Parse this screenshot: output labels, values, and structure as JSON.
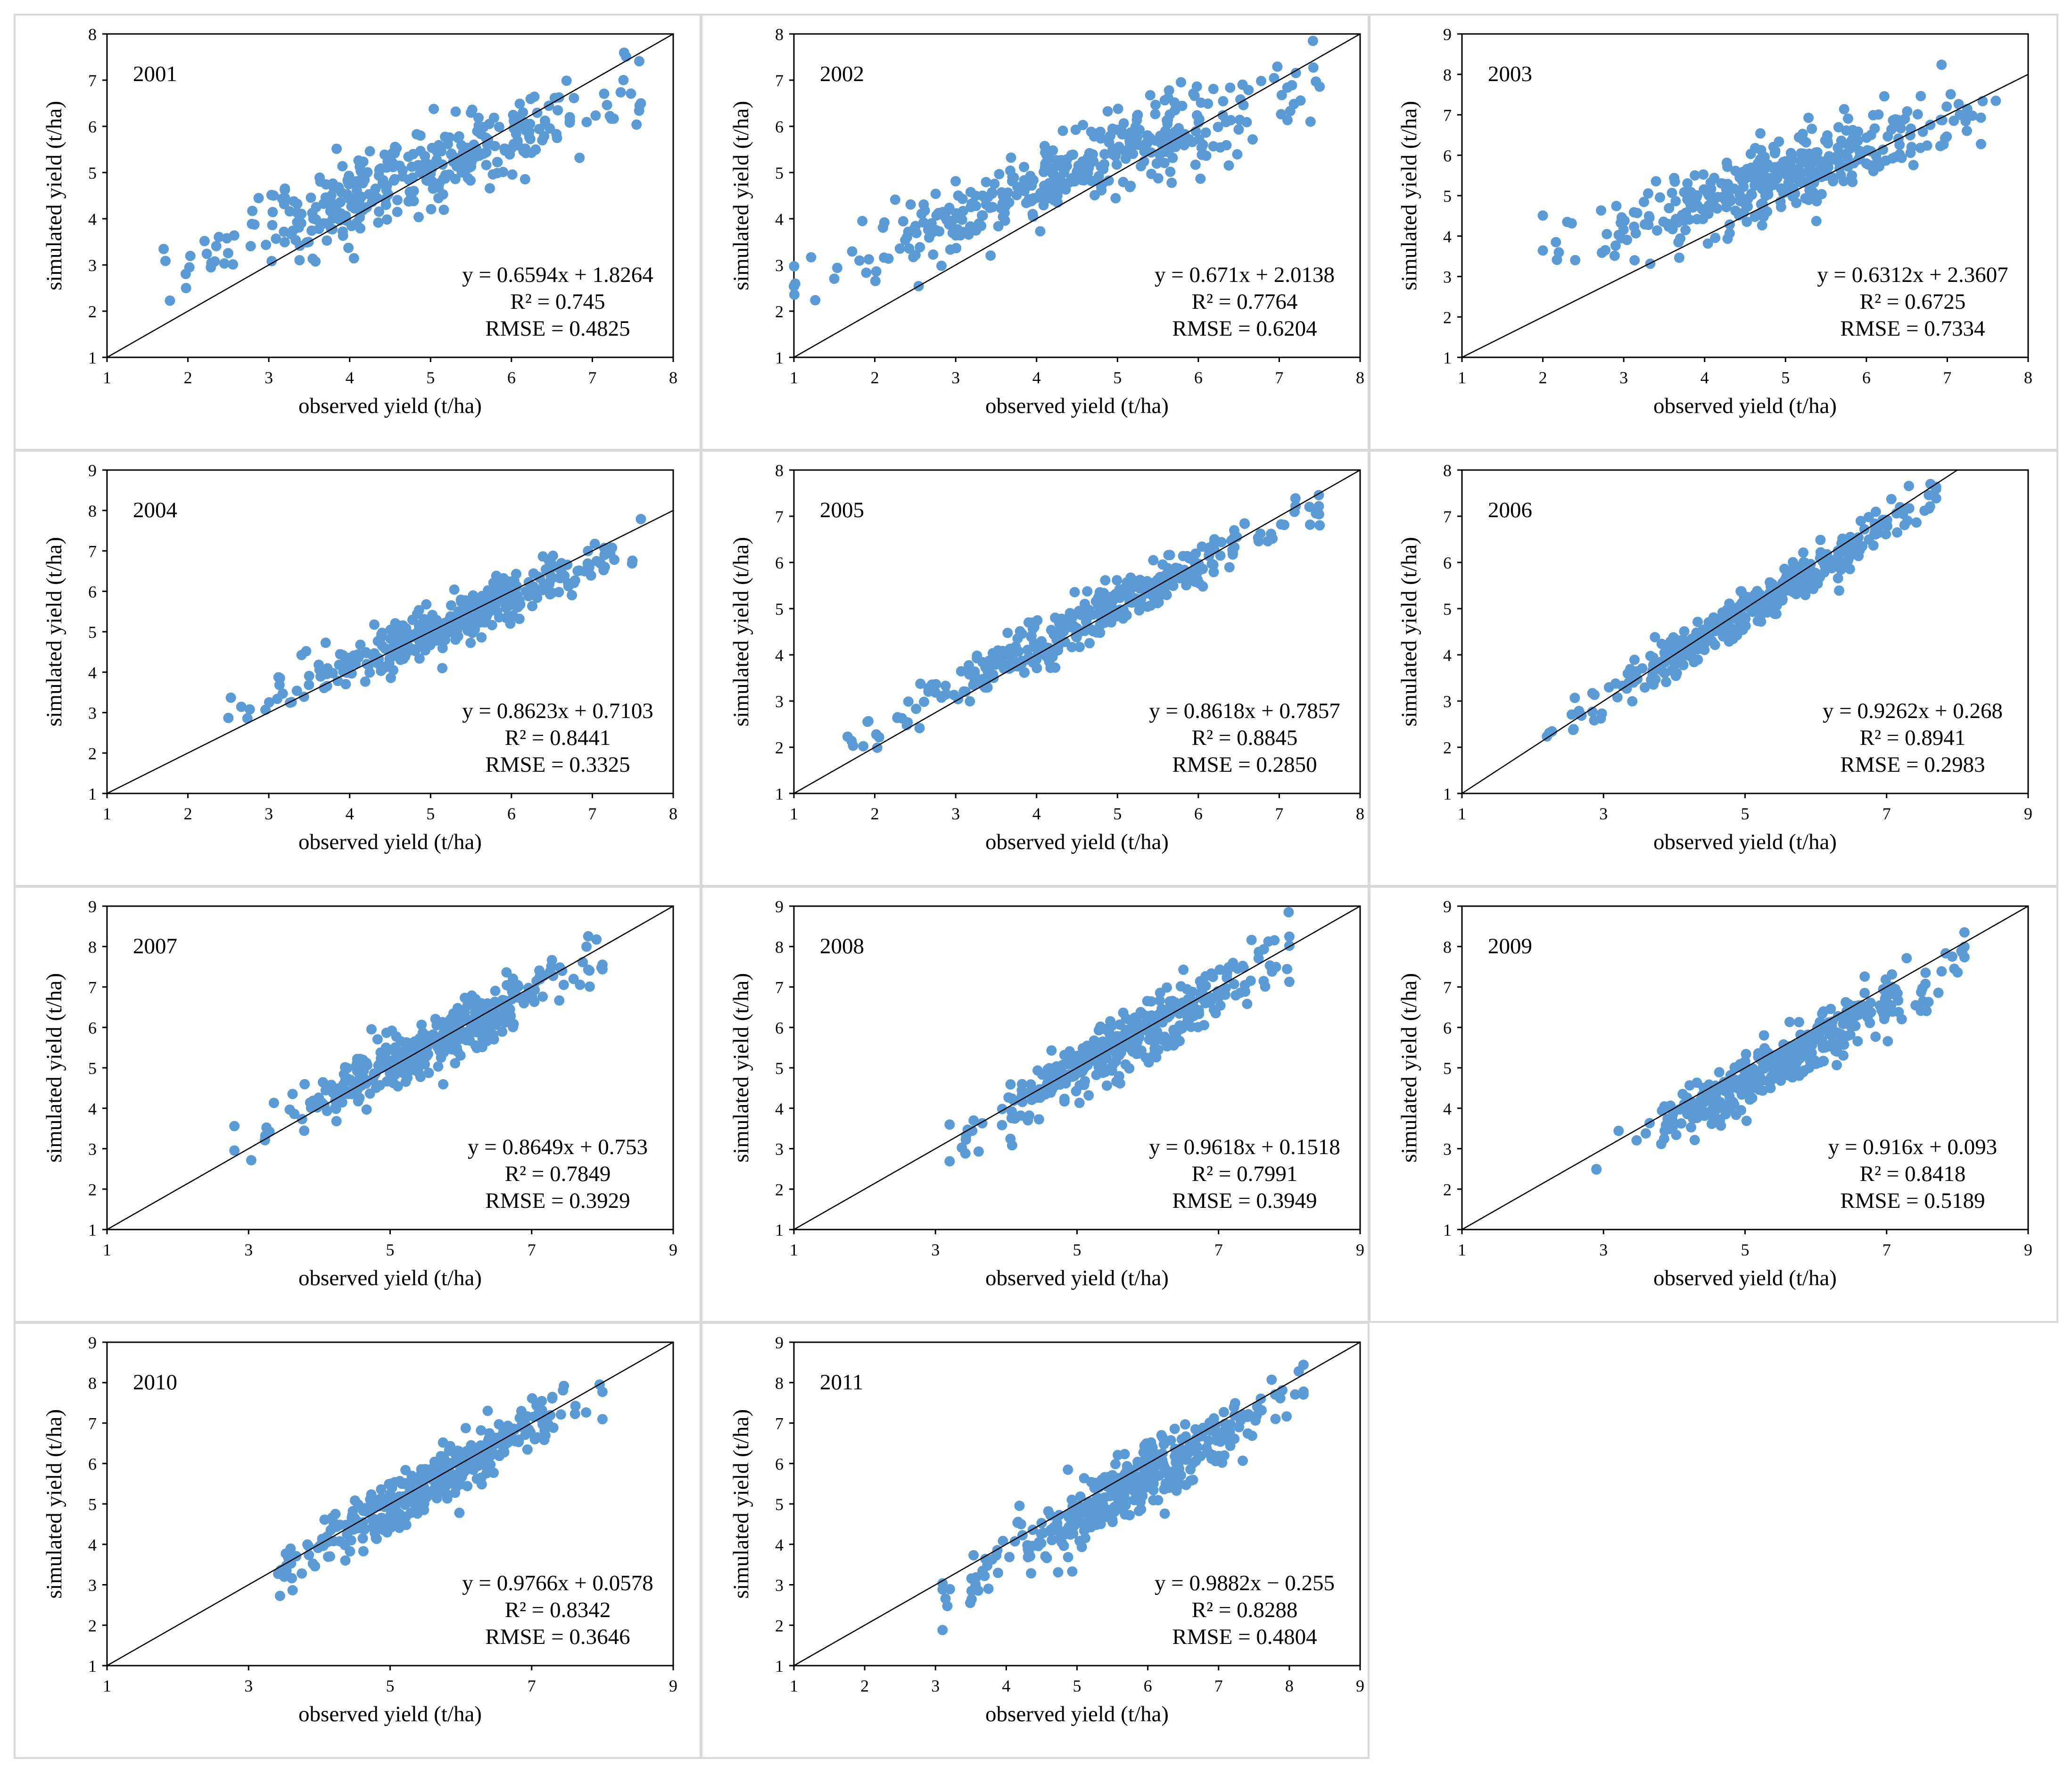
{
  "figure": {
    "note": "Scatter plots of simulated vs observed yield with 1:1 line, 2001-2011"
  },
  "style": {
    "point_color": "#5b9bd5",
    "line_color": "#000000",
    "panel_border": "#d9d9d9",
    "axis_color": "#000000"
  },
  "chart_data": [
    {
      "type": "scatter",
      "title": "2001",
      "xlabel": "observed yield (t/ha)",
      "ylabel": "simulated yield (t/ha)",
      "xlim": [
        1,
        8
      ],
      "ylim": [
        1,
        8
      ],
      "xticks": [
        1,
        2,
        3,
        4,
        5,
        6,
        7,
        8
      ],
      "yticks": [
        1,
        2,
        3,
        4,
        5,
        6,
        7,
        8
      ],
      "equation": "y = 0.6594x + 1.8264",
      "r2": "R² = 0.745",
      "rmse": "RMSE = 0.4825",
      "slope": 0.6594,
      "intercept": 1.8264,
      "x_range": [
        1.7,
        7.6
      ],
      "spread": 0.45,
      "n": 360,
      "seed": 11
    },
    {
      "type": "scatter",
      "title": "2002",
      "xlabel": "observed yield (t/ha)",
      "ylabel": "simulated yield (t/ha)",
      "xlim": [
        1,
        8
      ],
      "ylim": [
        1,
        8
      ],
      "xticks": [
        1,
        2,
        3,
        4,
        5,
        6,
        7,
        8
      ],
      "yticks": [
        1,
        2,
        3,
        4,
        5,
        6,
        7,
        8
      ],
      "equation": "y = 0.671x + 2.0138",
      "r2": "R² = 0.7764",
      "rmse": "RMSE = 0.6204",
      "slope": 0.671,
      "intercept": 2.0138,
      "x_range": [
        1.0,
        7.5
      ],
      "spread": 0.42,
      "n": 380,
      "seed": 22
    },
    {
      "type": "scatter",
      "title": "2003",
      "xlabel": "observed yield (t/ha)",
      "ylabel": "simulated yield (t/ha)",
      "xlim": [
        1,
        8
      ],
      "ylim": [
        1,
        9
      ],
      "xticks": [
        1,
        2,
        3,
        4,
        5,
        6,
        7,
        8
      ],
      "yticks": [
        1,
        2,
        3,
        4,
        5,
        6,
        7,
        8,
        9
      ],
      "equation": "y = 0.6312x + 2.3607",
      "r2": "R² = 0.6725",
      "rmse": "RMSE = 0.7334",
      "slope": 0.6312,
      "intercept": 2.3607,
      "x_range": [
        2.0,
        7.6
      ],
      "spread": 0.45,
      "n": 370,
      "seed": 33
    },
    {
      "type": "scatter",
      "title": "2004",
      "xlabel": "observed yield (t/ha)",
      "ylabel": "simulated yield (t/ha)",
      "xlim": [
        1,
        8
      ],
      "ylim": [
        1,
        9
      ],
      "xticks": [
        1,
        2,
        3,
        4,
        5,
        6,
        7,
        8
      ],
      "yticks": [
        1,
        2,
        3,
        4,
        5,
        6,
        7,
        8,
        9
      ],
      "equation": "y = 0.8623x + 0.7103",
      "r2": "R² = 0.8441",
      "rmse": "RMSE = 0.3325",
      "slope": 0.8623,
      "intercept": 0.7103,
      "x_range": [
        2.5,
        7.6
      ],
      "spread": 0.32,
      "n": 370,
      "seed": 44
    },
    {
      "type": "scatter",
      "title": "2005",
      "xlabel": "observed yield (t/ha)",
      "ylabel": "simulated yield (t/ha)",
      "xlim": [
        1,
        8
      ],
      "ylim": [
        1,
        8
      ],
      "xticks": [
        1,
        2,
        3,
        4,
        5,
        6,
        7,
        8
      ],
      "yticks": [
        1,
        2,
        3,
        4,
        5,
        6,
        7,
        8
      ],
      "equation": "y = 0.8618x + 0.7857",
      "r2": "R² = 0.8845",
      "rmse": "RMSE = 0.2850",
      "slope": 0.8618,
      "intercept": 0.7857,
      "x_range": [
        1.6,
        7.5
      ],
      "spread": 0.25,
      "n": 360,
      "seed": 55
    },
    {
      "type": "scatter",
      "title": "2006",
      "xlabel": "observed yield (t/ha)",
      "ylabel": "simulated yield (t/ha)",
      "xlim": [
        1,
        9
      ],
      "ylim": [
        1,
        8
      ],
      "xticks": [
        1,
        3,
        5,
        7,
        9
      ],
      "yticks": [
        1,
        2,
        3,
        4,
        5,
        6,
        7,
        8
      ],
      "equation": "y = 0.9262x + 0.268",
      "r2": "R² = 0.8941",
      "rmse": "RMSE = 0.2983",
      "slope": 0.9262,
      "intercept": 0.268,
      "x_range": [
        2.2,
        7.7
      ],
      "spread": 0.23,
      "n": 380,
      "seed": 66
    },
    {
      "type": "scatter",
      "title": "2007",
      "xlabel": "observed yield (t/ha)",
      "ylabel": "simulated yield (t/ha)",
      "xlim": [
        1,
        9
      ],
      "ylim": [
        1,
        9
      ],
      "xticks": [
        1,
        3,
        5,
        7,
        9
      ],
      "yticks": [
        1,
        2,
        3,
        4,
        5,
        6,
        7,
        8,
        9
      ],
      "equation": "y = 0.8649x + 0.753",
      "r2": "R² = 0.7849",
      "rmse": "RMSE = 0.3929",
      "slope": 0.8649,
      "intercept": 0.753,
      "x_range": [
        2.8,
        8.0
      ],
      "spread": 0.35,
      "n": 360,
      "seed": 77
    },
    {
      "type": "scatter",
      "title": "2008",
      "xlabel": "observed yield (t/ha)",
      "ylabel": "simulated yield (t/ha)",
      "xlim": [
        1,
        9
      ],
      "ylim": [
        1,
        9
      ],
      "xticks": [
        1,
        3,
        5,
        7,
        9
      ],
      "yticks": [
        1,
        2,
        3,
        4,
        5,
        6,
        7,
        8,
        9
      ],
      "equation": "y = 0.9618x + 0.1518",
      "r2": "R² = 0.7991",
      "rmse": "RMSE = 0.3949",
      "slope": 0.9618,
      "intercept": 0.1518,
      "x_range": [
        3.2,
        8.0
      ],
      "spread": 0.38,
      "n": 370,
      "seed": 88
    },
    {
      "type": "scatter",
      "title": "2009",
      "xlabel": "observed yield (t/ha)",
      "ylabel": "simulated yield (t/ha)",
      "xlim": [
        1,
        9
      ],
      "ylim": [
        1,
        9
      ],
      "xticks": [
        1,
        3,
        5,
        7,
        9
      ],
      "yticks": [
        1,
        2,
        3,
        4,
        5,
        6,
        7,
        8,
        9
      ],
      "equation": "y = 0.916x + 0.093",
      "r2": "R² = 0.8418",
      "rmse": "RMSE = 0.5189",
      "slope": 0.916,
      "intercept": 0.093,
      "x_range": [
        2.9,
        8.1
      ],
      "spread": 0.33,
      "n": 370,
      "seed": 99
    },
    {
      "type": "scatter",
      "title": "2010",
      "xlabel": "observed yield (t/ha)",
      "ylabel": "simulated yield (t/ha)",
      "xlim": [
        1,
        9
      ],
      "ylim": [
        1,
        9
      ],
      "xticks": [
        1,
        3,
        5,
        7,
        9
      ],
      "yticks": [
        1,
        2,
        3,
        4,
        5,
        6,
        7,
        8,
        9
      ],
      "equation": "y = 0.9766x + 0.0578",
      "r2": "R² = 0.8342",
      "rmse": "RMSE = 0.3646",
      "slope": 0.9766,
      "intercept": 0.0578,
      "x_range": [
        3.1,
        8.0
      ],
      "spread": 0.33,
      "n": 380,
      "seed": 110
    },
    {
      "type": "scatter",
      "title": "2011",
      "xlabel": "observed yield (t/ha)",
      "ylabel": "simulated yield (t/ha)",
      "xlim": [
        1,
        9
      ],
      "ylim": [
        1,
        9
      ],
      "xticks": [
        1,
        2,
        3,
        4,
        5,
        6,
        7,
        8,
        9
      ],
      "yticks": [
        1,
        2,
        3,
        4,
        5,
        6,
        7,
        8,
        9
      ],
      "equation": "y = 0.9882x − 0.255",
      "r2": "R² = 0.8288",
      "rmse": "RMSE = 0.4804",
      "slope": 0.9882,
      "intercept": -0.255,
      "x_range": [
        3.1,
        8.2
      ],
      "spread": 0.38,
      "n": 380,
      "seed": 121
    }
  ]
}
